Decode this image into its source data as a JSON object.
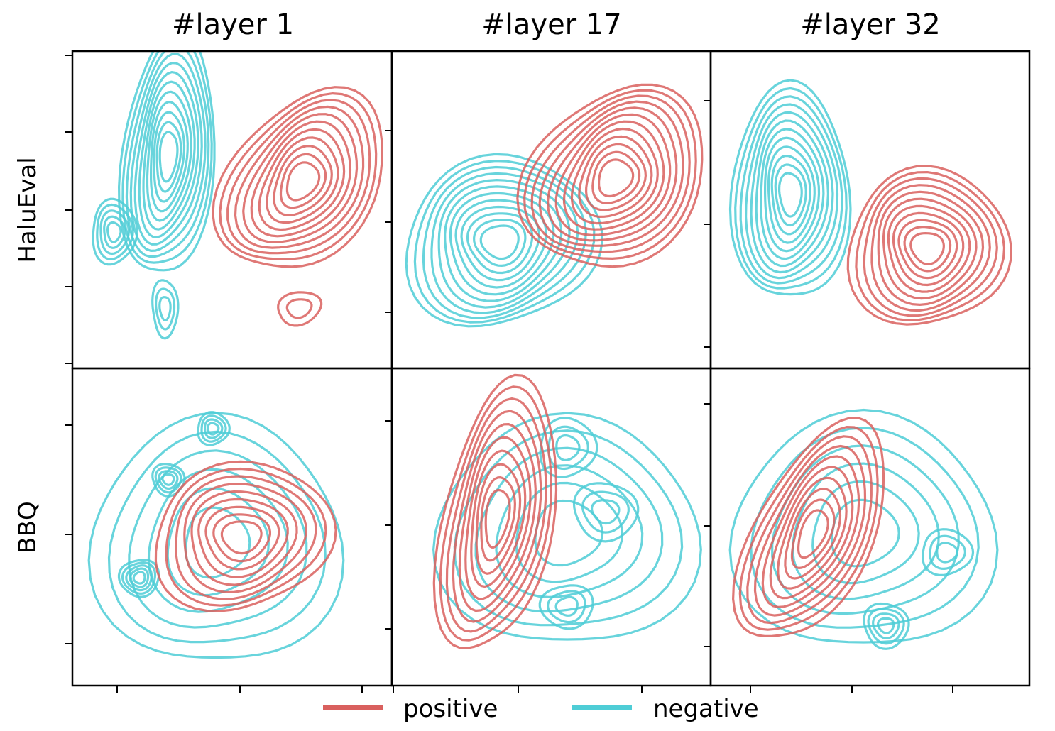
{
  "chart_data": {
    "type": "contour",
    "column_titles": [
      "#layer 1",
      "#layer 17",
      "#layer 32"
    ],
    "row_labels": [
      "HaluEval",
      "BBQ"
    ],
    "legend": {
      "placement": "bottom-center",
      "entries": [
        {
          "label": "positive",
          "color": "#d9605e"
        },
        {
          "label": "negative",
          "color": "#4ecdd6"
        }
      ]
    },
    "colors": {
      "positive": "#d9605e",
      "negative": "#4ecdd6"
    },
    "tick_labels_shown": false,
    "panels": [
      {
        "row": "HaluEval",
        "column": "#layer 1",
        "positive": [
          {
            "cx": 0.72,
            "cy": 0.41,
            "rx": 0.22,
            "ry": 0.32,
            "levels": 11,
            "rot": 35
          },
          {
            "cx": 0.71,
            "cy": 0.81,
            "rx": 0.07,
            "ry": 0.05,
            "levels": 2,
            "rot": -15
          }
        ],
        "negative": [
          {
            "cx": 0.3,
            "cy": 0.33,
            "rx": 0.14,
            "ry": 0.4,
            "levels": 12,
            "rot": 5
          },
          {
            "cx": 0.13,
            "cy": 0.57,
            "rx": 0.07,
            "ry": 0.1,
            "levels": 5,
            "rot": 0
          },
          {
            "cx": 0.29,
            "cy": 0.81,
            "rx": 0.04,
            "ry": 0.09,
            "levels": 3,
            "rot": 0
          }
        ]
      },
      {
        "row": "HaluEval",
        "column": "#layer 17",
        "positive": [
          {
            "cx": 0.7,
            "cy": 0.4,
            "rx": 0.25,
            "ry": 0.32,
            "levels": 12,
            "rot": 40
          }
        ],
        "negative": [
          {
            "cx": 0.34,
            "cy": 0.6,
            "rx": 0.3,
            "ry": 0.27,
            "levels": 12,
            "rot": -20
          }
        ]
      },
      {
        "row": "HaluEval",
        "column": "#layer 32",
        "positive": [
          {
            "cx": 0.68,
            "cy": 0.62,
            "rx": 0.25,
            "ry": 0.25,
            "levels": 11,
            "rot": 0
          }
        ],
        "negative": [
          {
            "cx": 0.25,
            "cy": 0.45,
            "rx": 0.18,
            "ry": 0.35,
            "levels": 12,
            "rot": 0
          }
        ]
      },
      {
        "row": "BBQ",
        "column": "#layer 1",
        "positive": [
          {
            "cx": 0.53,
            "cy": 0.53,
            "rx": 0.28,
            "ry": 0.23,
            "levels": 9,
            "rot": -10
          }
        ],
        "negative": [
          {
            "cx": 0.45,
            "cy": 0.55,
            "rx": 0.38,
            "ry": 0.4,
            "levels": 6,
            "rot": 0
          },
          {
            "cx": 0.44,
            "cy": 0.19,
            "rx": 0.05,
            "ry": 0.05,
            "levels": 4,
            "rot": 0
          },
          {
            "cx": 0.3,
            "cy": 0.35,
            "rx": 0.05,
            "ry": 0.05,
            "levels": 4,
            "rot": 0
          },
          {
            "cx": 0.21,
            "cy": 0.66,
            "rx": 0.06,
            "ry": 0.06,
            "levels": 5,
            "rot": 0
          }
        ]
      },
      {
        "row": "BBQ",
        "column": "#layer 17",
        "positive": [
          {
            "cx": 0.33,
            "cy": 0.47,
            "rx": 0.17,
            "ry": 0.44,
            "levels": 10,
            "rot": 10
          }
        ],
        "negative": [
          {
            "cx": 0.55,
            "cy": 0.52,
            "rx": 0.4,
            "ry": 0.37,
            "levels": 6,
            "rot": 0
          },
          {
            "cx": 0.55,
            "cy": 0.25,
            "rx": 0.09,
            "ry": 0.09,
            "levels": 3,
            "rot": 0
          },
          {
            "cx": 0.67,
            "cy": 0.45,
            "rx": 0.1,
            "ry": 0.09,
            "levels": 3,
            "rot": 0
          },
          {
            "cx": 0.55,
            "cy": 0.75,
            "rx": 0.08,
            "ry": 0.07,
            "levels": 3,
            "rot": 0
          }
        ]
      },
      {
        "row": "BBQ",
        "column": "#layer 32",
        "positive": [
          {
            "cx": 0.32,
            "cy": 0.52,
            "rx": 0.18,
            "ry": 0.38,
            "levels": 10,
            "rot": 25
          }
        ],
        "negative": [
          {
            "cx": 0.48,
            "cy": 0.52,
            "rx": 0.4,
            "ry": 0.38,
            "levels": 6,
            "rot": 0
          },
          {
            "cx": 0.74,
            "cy": 0.58,
            "rx": 0.08,
            "ry": 0.07,
            "levels": 3,
            "rot": 0
          },
          {
            "cx": 0.55,
            "cy": 0.81,
            "rx": 0.07,
            "ry": 0.07,
            "levels": 4,
            "rot": 0
          }
        ]
      }
    ]
  }
}
